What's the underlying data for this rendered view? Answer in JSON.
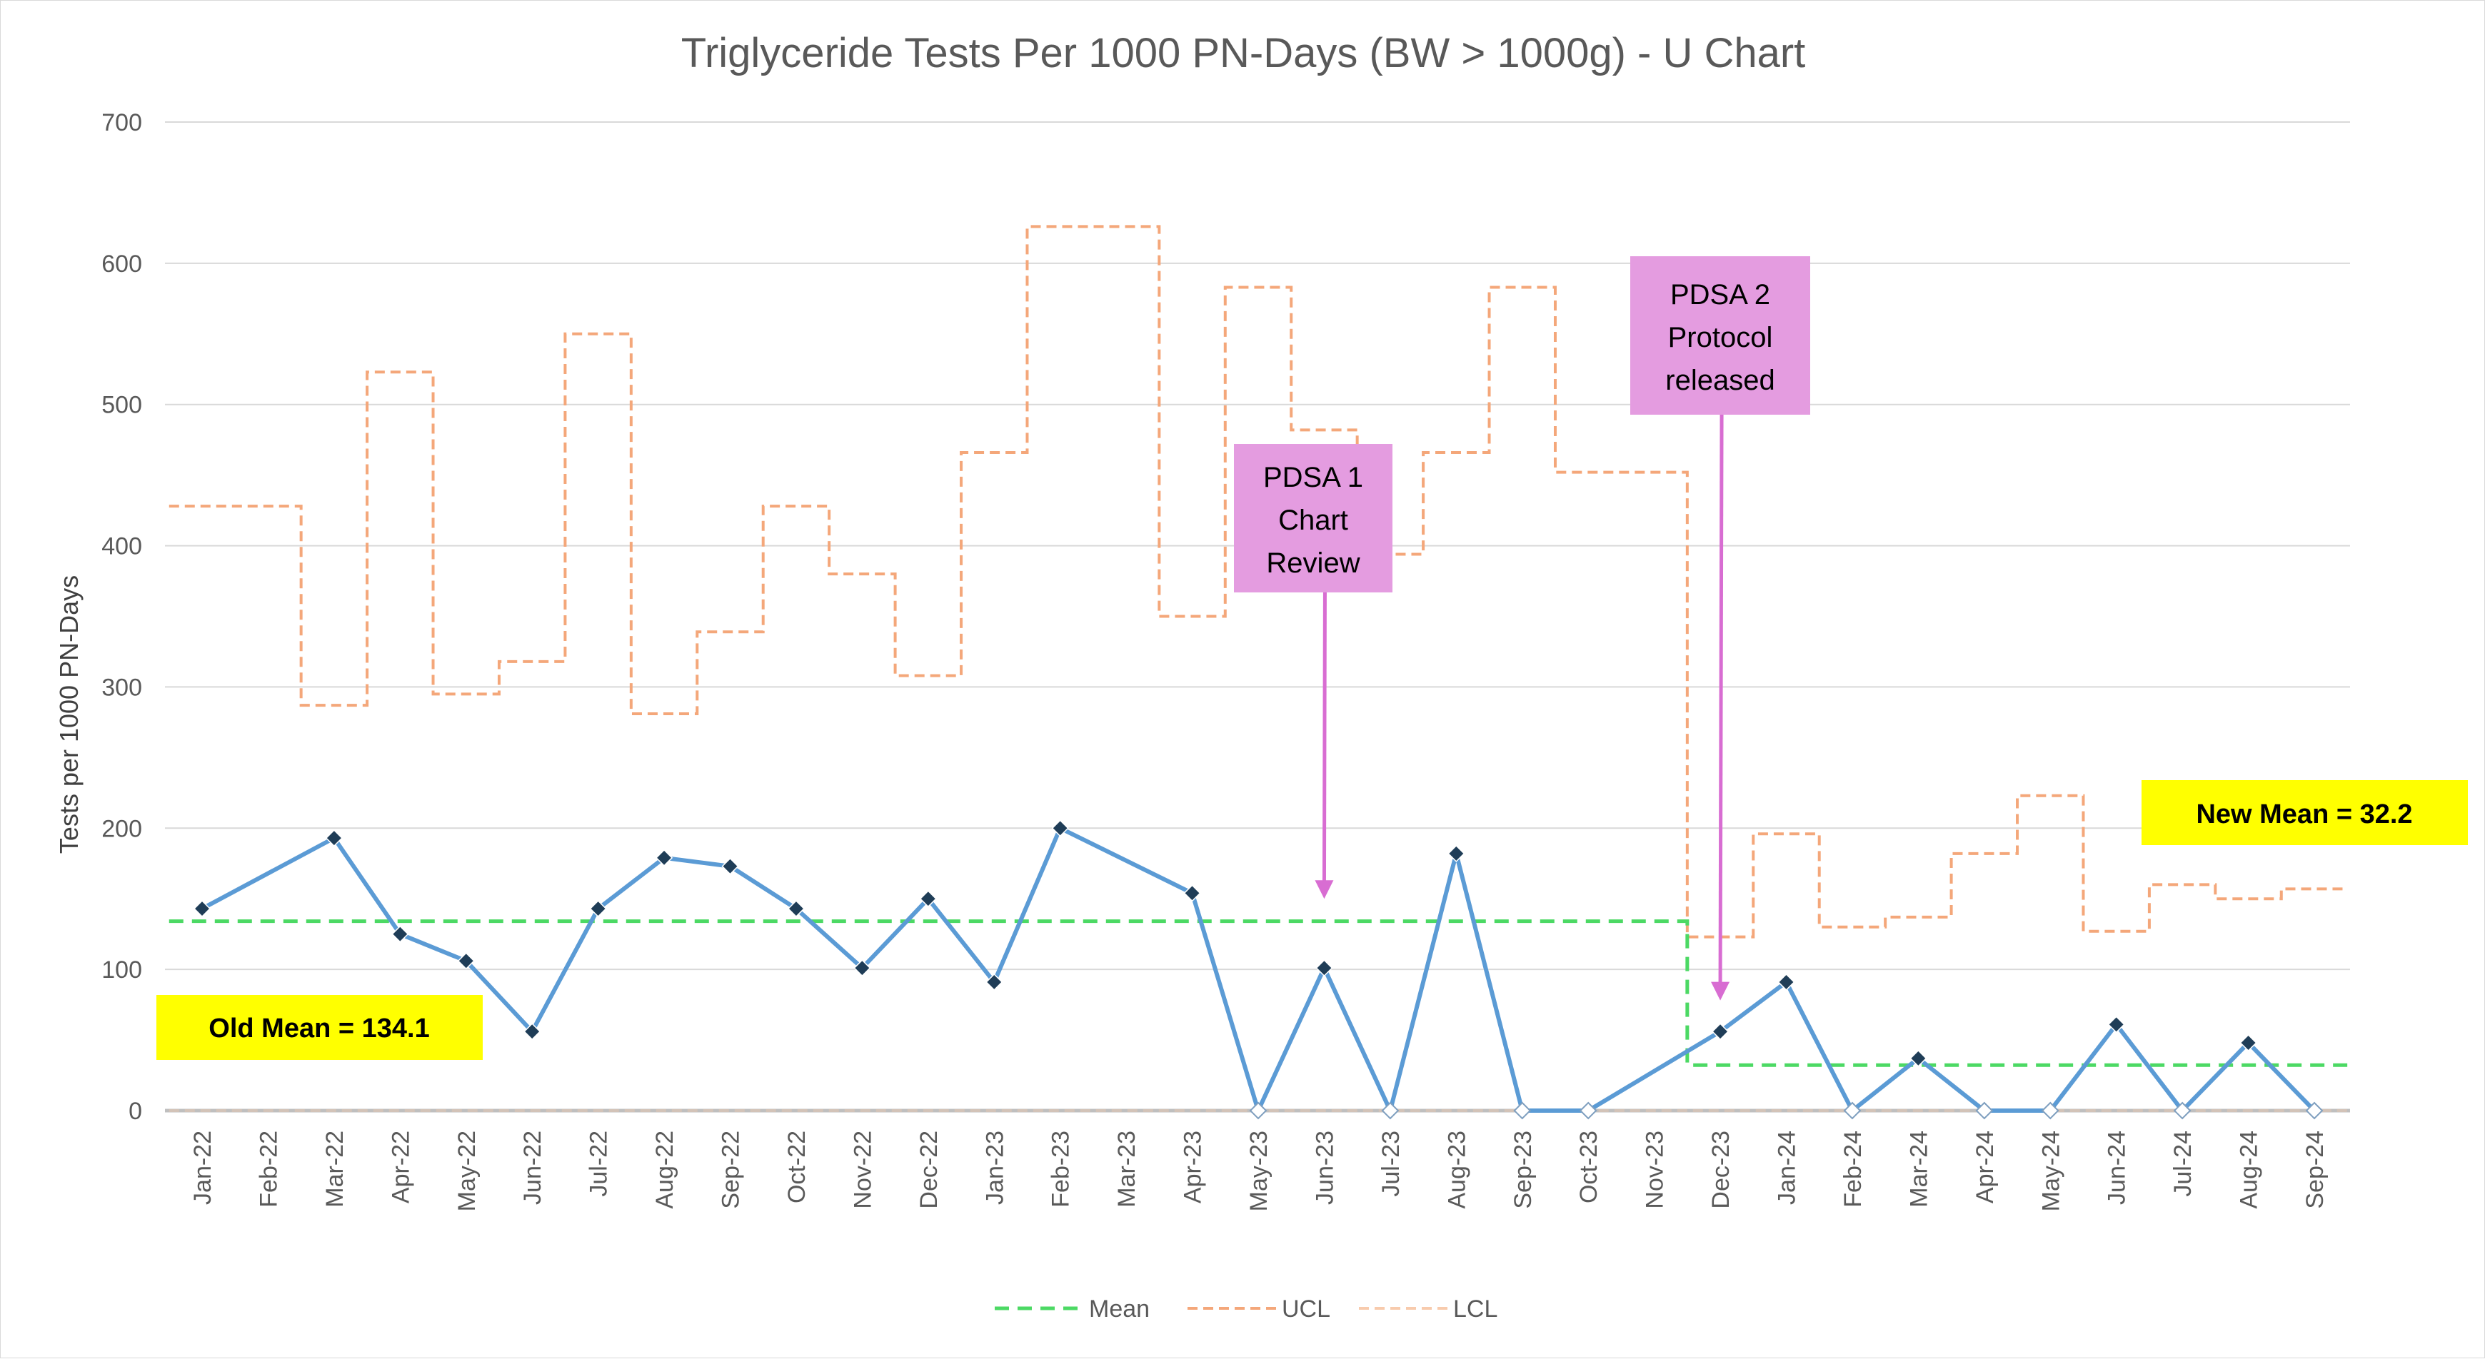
{
  "colors": {
    "series": "#5b9bd5",
    "marker": "#1f3d57",
    "mean": "#4cd964",
    "ucl": "#f4a77a",
    "lcl": "#f8cbad",
    "grid": "#d9d9d9",
    "annotation_box": "#e49ce0",
    "annotation_arrow": "#d86dd2",
    "mean_box": "#ffff00"
  },
  "chart_data": {
    "type": "line",
    "title": "Triglyceride Tests Per 1000 PN-Days (BW > 1000g)  -  U Chart",
    "xlabel": "",
    "ylabel": "Tests per 1000 PN-Days",
    "ylim": [
      0,
      700
    ],
    "yticks": [
      0,
      100,
      200,
      300,
      400,
      500,
      600,
      700
    ],
    "grid": true,
    "legend_position": "bottom",
    "categories": [
      "Jan-22",
      "Feb-22",
      "Mar-22",
      "Apr-22",
      "May-22",
      "Jun-22",
      "Jul-22",
      "Aug-22",
      "Sep-22",
      "Oct-22",
      "Nov-22",
      "Dec-22",
      "Jan-23",
      "Feb-23",
      "Mar-23",
      "Apr-23",
      "May-23",
      "Jun-23",
      "Jul-23",
      "Aug-23",
      "Sep-23",
      "Oct-23",
      "Nov-23",
      "Dec-23",
      "Jan-24",
      "Feb-24",
      "Mar-24",
      "Apr-24",
      "May-24",
      "Jun-24",
      "Jul-24",
      "Aug-24",
      "Sep-24"
    ],
    "series": [
      {
        "key": "rate",
        "values": [
          143,
          null,
          193,
          125,
          106,
          56,
          143,
          179,
          173,
          143,
          101,
          150,
          91,
          200,
          null,
          154,
          0,
          101,
          0,
          182,
          0,
          0,
          null,
          56,
          91,
          0,
          37,
          0,
          0,
          61,
          0,
          48,
          0
        ]
      },
      {
        "name": "Mean",
        "values": [
          134.1,
          134.1,
          134.1,
          134.1,
          134.1,
          134.1,
          134.1,
          134.1,
          134.1,
          134.1,
          134.1,
          134.1,
          134.1,
          134.1,
          134.1,
          134.1,
          134.1,
          134.1,
          134.1,
          134.1,
          134.1,
          134.1,
          134.1,
          32.2,
          32.2,
          32.2,
          32.2,
          32.2,
          32.2,
          32.2,
          32.2,
          32.2,
          32.2
        ]
      },
      {
        "name": "UCL",
        "values": [
          428,
          428,
          287,
          523,
          295,
          318,
          550,
          281,
          339,
          428,
          380,
          308,
          466,
          626,
          626,
          350,
          583,
          482,
          394,
          466,
          583,
          452,
          452,
          123,
          196,
          130,
          137,
          182,
          223,
          127,
          160,
          150,
          157
        ]
      },
      {
        "name": "LCL",
        "values": [
          0,
          0,
          0,
          0,
          0,
          0,
          0,
          0,
          0,
          0,
          0,
          0,
          0,
          0,
          0,
          0,
          0,
          0,
          0,
          0,
          0,
          0,
          0,
          0,
          0,
          0,
          0,
          0,
          0,
          0,
          0,
          0,
          0
        ]
      }
    ],
    "annotations": [
      {
        "lines": [
          "PDSA 1",
          "Chart",
          "Review"
        ],
        "category": "Jun-23",
        "arrow_to": 150
      },
      {
        "lines": [
          "PDSA 2",
          "Protocol",
          "released"
        ],
        "category": "Dec-23",
        "arrow_to": 78
      }
    ],
    "mean_labels": {
      "old": "Old Mean = 134.1",
      "new": "New Mean = 32.2"
    }
  }
}
